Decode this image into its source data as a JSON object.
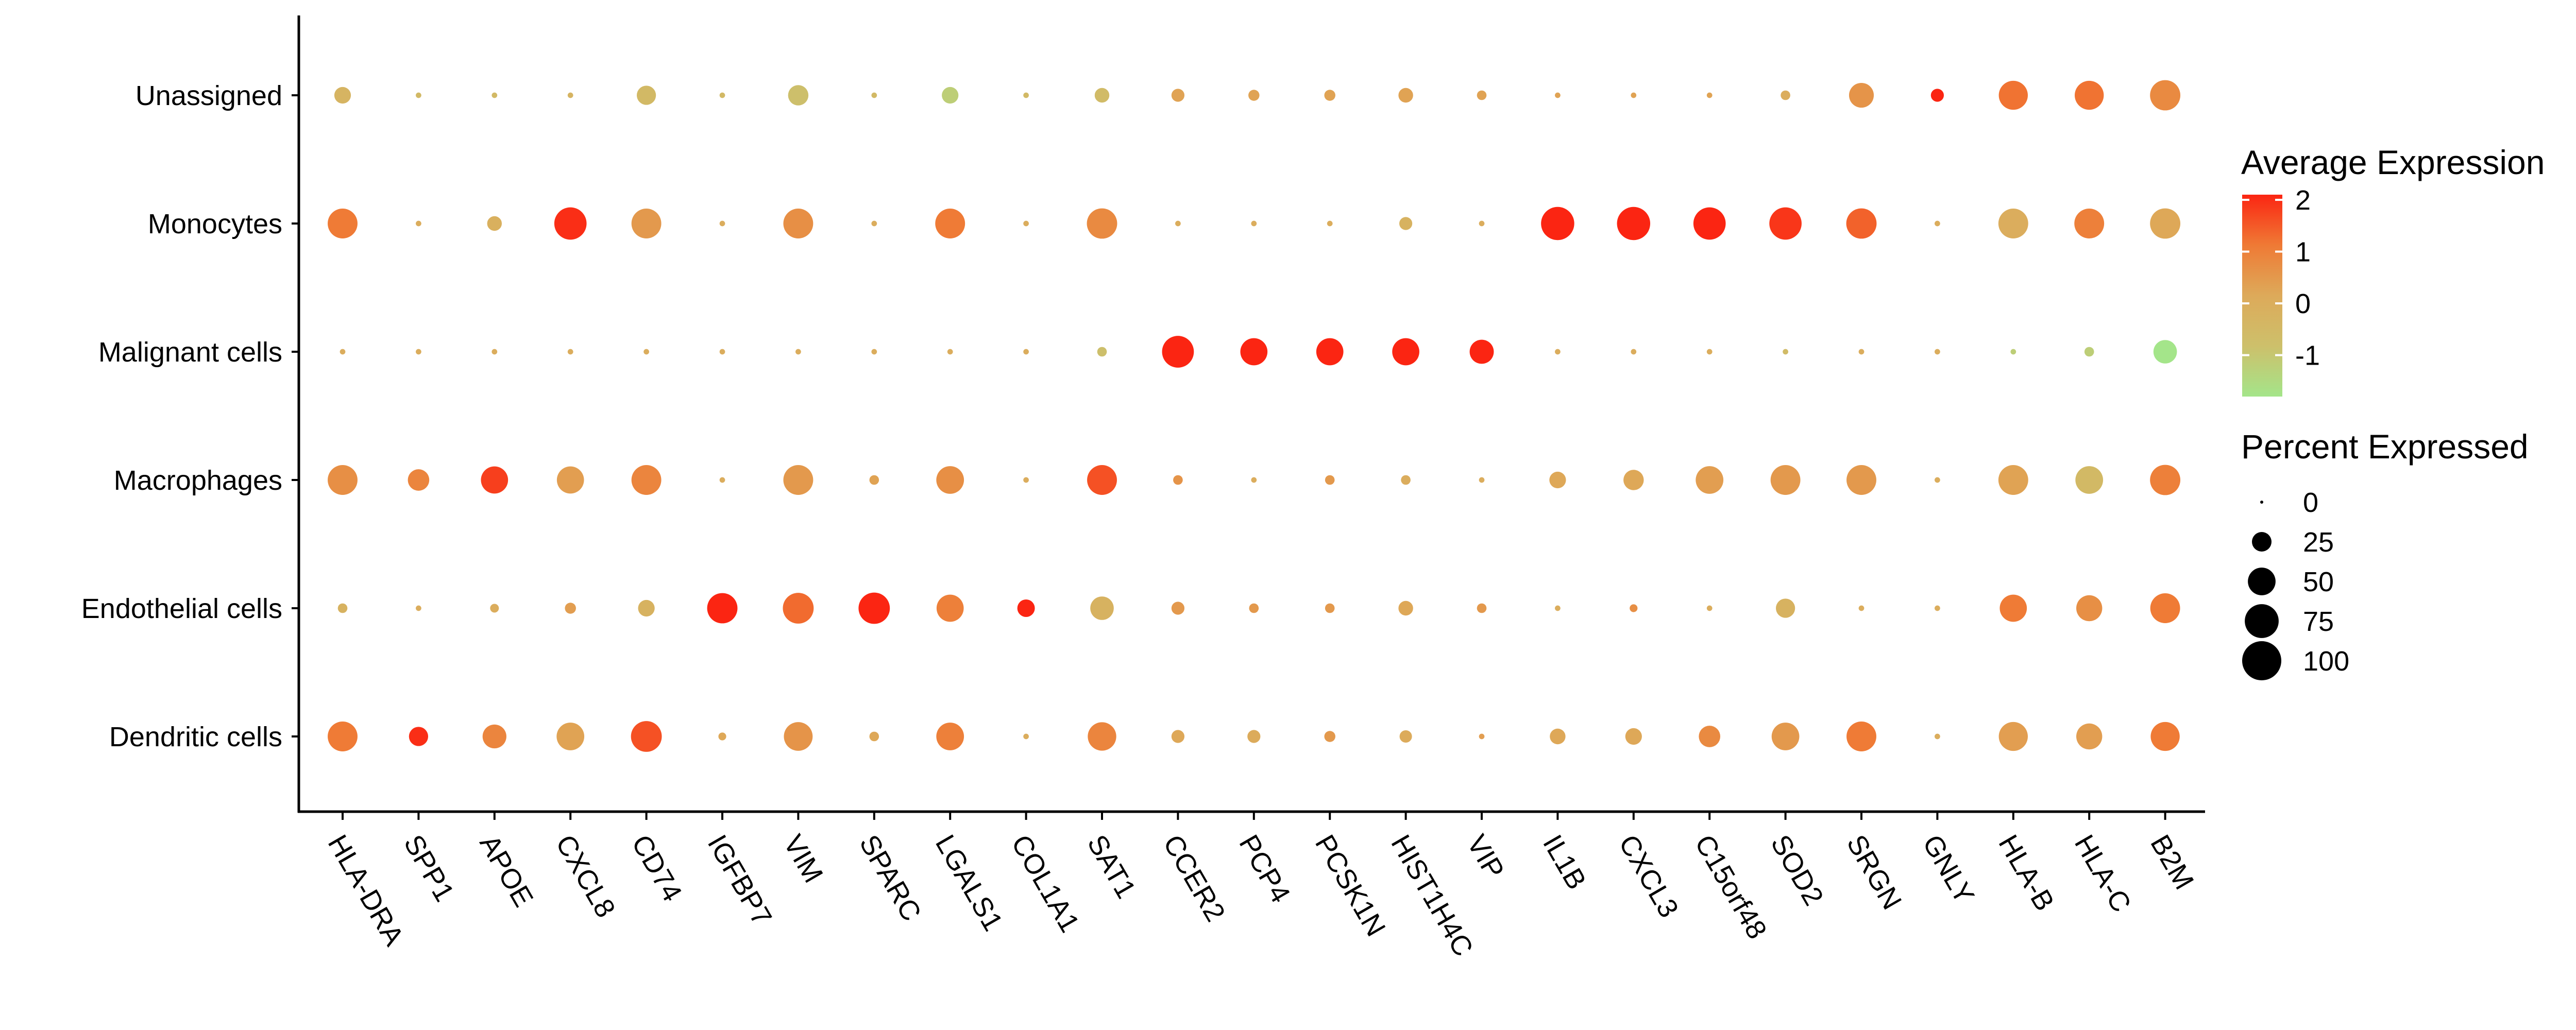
{
  "chart_data": {
    "type": "dotplot",
    "genes": [
      "HLA-DRA",
      "SPP1",
      "APOE",
      "CXCL8",
      "CD74",
      "IGFBP7",
      "VIM",
      "SPARC",
      "LGALS1",
      "COL1A1",
      "SAT1",
      "CCER2",
      "PCP4",
      "PCSK1N",
      "HIST1H4C",
      "VIP",
      "IL1B",
      "CXCL3",
      "C15orf48",
      "SOD2",
      "SRGN",
      "GNLY",
      "HLA-B",
      "HLA-C",
      "B2M"
    ],
    "cell_types": [
      "Unassigned",
      "Monocytes",
      "Malignant cells",
      "Macrophages",
      "Endothelial cells",
      "Dendritic cells"
    ],
    "avg_expression": [
      [
        -0.3,
        -0.5,
        -0.5,
        -0.3,
        -0.5,
        -0.5,
        -0.8,
        -0.5,
        -1.2,
        -0.5,
        -0.6,
        0.3,
        0.3,
        0.3,
        0.3,
        0.3,
        0.3,
        0.3,
        0.3,
        0,
        0.6,
        2.3,
        1.2,
        1.2,
        0.8
      ],
      [
        1.1,
        0,
        -0.1,
        2,
        0.5,
        0,
        0.7,
        0,
        1.1,
        0,
        0.8,
        0,
        0,
        0,
        -0.2,
        0,
        2.3,
        2.2,
        2.1,
        1.9,
        1.4,
        0,
        0,
        1,
        0.2
      ],
      [
        0,
        0,
        0,
        0,
        0,
        0,
        0,
        0,
        0,
        0,
        -0.8,
        2.3,
        2.2,
        2.2,
        2.1,
        2.2,
        0,
        0,
        0,
        -0.6,
        0,
        0,
        -1.2,
        -1.2,
        -2.1
      ],
      [
        0.7,
        0.9,
        1.8,
        0.4,
        0.9,
        0,
        0.5,
        0.3,
        0.7,
        0,
        1.6,
        0.6,
        0,
        0.5,
        0,
        0,
        0.2,
        0.2,
        0.4,
        0.5,
        0.5,
        0,
        0.3,
        -0.5,
        1
      ],
      [
        -0.2,
        0,
        0,
        0.4,
        -0.2,
        2.4,
        1.3,
        2.4,
        1,
        2.5,
        -0.2,
        0.5,
        0.5,
        0.5,
        0.2,
        0.5,
        0,
        0.7,
        0,
        -0.2,
        0,
        0,
        1.1,
        0.7,
        1.1
      ],
      [
        1.1,
        2,
        0.9,
        0.3,
        1.6,
        0.2,
        0.6,
        0.2,
        1,
        0,
        0.9,
        0.2,
        0.1,
        0.5,
        0.1,
        0.4,
        0.2,
        0.2,
        0.8,
        0.5,
        1.1,
        0,
        0.4,
        0.4,
        1.1
      ]
    ],
    "percent_expressed": [
      [
        18,
        2,
        2,
        2,
        24,
        2,
        27,
        2,
        18,
        2,
        14,
        11,
        8,
        8,
        14,
        6,
        2,
        2,
        2,
        6,
        40,
        11,
        55,
        55,
        60
      ],
      [
        58,
        2,
        14,
        68,
        58,
        2,
        58,
        2,
        58,
        2,
        60,
        2,
        2,
        2,
        11,
        2,
        72,
        72,
        68,
        68,
        60,
        2,
        58,
        58,
        60
      ],
      [
        2,
        2,
        2,
        2,
        2,
        2,
        2,
        2,
        2,
        2,
        6,
        66,
        48,
        48,
        48,
        38,
        2,
        2,
        2,
        2,
        2,
        2,
        2,
        6,
        36
      ],
      [
        58,
        30,
        48,
        48,
        58,
        2,
        58,
        6,
        50,
        2,
        58,
        6,
        2,
        6,
        6,
        2,
        18,
        27,
        50,
        58,
        58,
        2,
        58,
        50,
        60
      ],
      [
        6,
        2,
        5,
        8,
        18,
        60,
        62,
        64,
        48,
        20,
        36,
        11,
        6,
        6,
        14,
        6,
        2,
        4,
        2,
        24,
        2,
        2,
        48,
        44,
        58
      ],
      [
        58,
        24,
        37,
        50,
        62,
        4,
        54,
        6,
        50,
        2,
        53,
        11,
        11,
        8,
        10,
        2,
        16,
        18,
        30,
        50,
        58,
        2,
        55,
        44,
        55
      ]
    ],
    "legend_color": {
      "title": "Average Expression",
      "ticks": [
        2,
        1,
        0,
        -1
      ],
      "range": [
        -1.8,
        2.1
      ],
      "colors": [
        "#a4e58a",
        "#cdc06b",
        "#ddaa5a",
        "#ef7a35",
        "#fb2512"
      ]
    },
    "legend_size": {
      "title": "Percent Expressed",
      "ticks": [
        0,
        25,
        50,
        75,
        100
      ]
    }
  }
}
